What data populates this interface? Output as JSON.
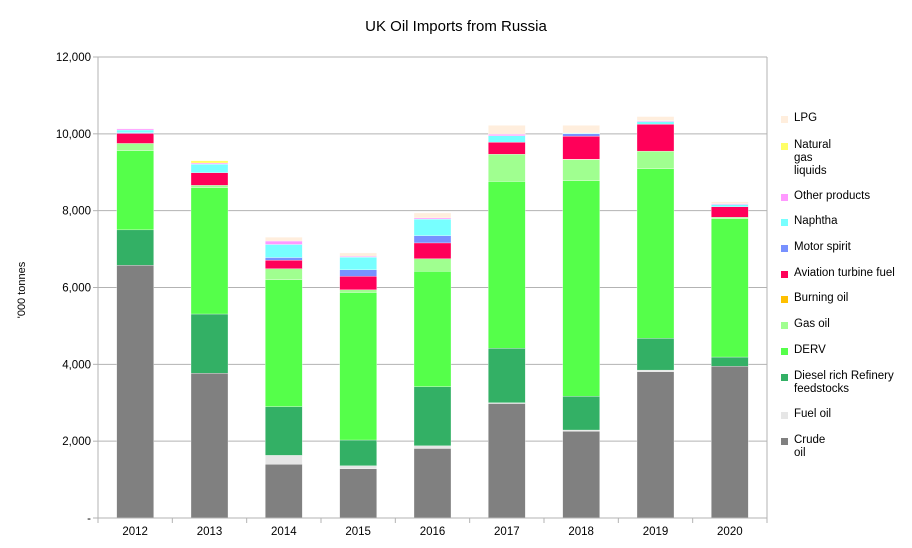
{
  "chart_data": {
    "type": "bar",
    "stacked": true,
    "title": "UK Oil Imports from Russia",
    "xlabel": "",
    "ylabel": "'000 tonnes",
    "ylim": [
      0,
      12000
    ],
    "yticks": [
      0,
      2000,
      4000,
      6000,
      8000,
      10000,
      12000
    ],
    "ytick_labels": [
      "-",
      "2,000",
      "4,000",
      "6,000",
      "8,000",
      "10,000",
      "12,000"
    ],
    "grid": true,
    "legend_position": "right",
    "categories": [
      "2012",
      "2013",
      "2014",
      "2015",
      "2016",
      "2017",
      "2018",
      "2019",
      "2020"
    ],
    "series": [
      {
        "name": "Crude oil",
        "color": "#808080",
        "values": [
          6580,
          3770,
          1400,
          1280,
          1810,
          2980,
          2260,
          3810,
          3950
        ]
      },
      {
        "name": "Fuel oil",
        "color": "#e6e6e6",
        "values": [
          0,
          0,
          230,
          80,
          70,
          20,
          30,
          40,
          0
        ]
      },
      {
        "name": "Diesel rich Refinery feedstocks",
        "color": "#33b065",
        "values": [
          920,
          1540,
          1270,
          670,
          1540,
          1420,
          880,
          830,
          240
        ]
      },
      {
        "name": "DERV",
        "color": "#55ff4a",
        "values": [
          2060,
          3290,
          3300,
          3840,
          3000,
          4340,
          5610,
          4410,
          3600
        ]
      },
      {
        "name": "Gas oil",
        "color": "#a0ff90",
        "values": [
          190,
          60,
          290,
          70,
          330,
          710,
          550,
          460,
          40
        ]
      },
      {
        "name": "Burning oil",
        "color": "#ffc000",
        "values": [
          0,
          0,
          0,
          0,
          0,
          0,
          10,
          0,
          0
        ]
      },
      {
        "name": "Aviation turbine fuel",
        "color": "#ff0059",
        "values": [
          260,
          330,
          220,
          350,
          410,
          310,
          600,
          700,
          270
        ]
      },
      {
        "name": "Motor spirit",
        "color": "#7891ff",
        "values": [
          20,
          0,
          70,
          170,
          190,
          0,
          60,
          0,
          0
        ]
      },
      {
        "name": "Naphtha",
        "color": "#77ffff",
        "values": [
          70,
          220,
          340,
          330,
          430,
          170,
          20,
          70,
          60
        ]
      },
      {
        "name": "Other products",
        "color": "#ff99ff",
        "values": [
          30,
          30,
          90,
          20,
          30,
          40,
          0,
          20,
          20
        ]
      },
      {
        "name": "Natural gas liquids",
        "color": "#ffff66",
        "values": [
          0,
          60,
          0,
          0,
          0,
          0,
          0,
          0,
          0
        ]
      },
      {
        "name": "LPG",
        "color": "#ffeedd",
        "values": [
          0,
          0,
          100,
          90,
          130,
          230,
          200,
          110,
          50
        ]
      }
    ],
    "legend_labels": [
      "LPG",
      "Natural\ngas\nliquids",
      "Other products",
      "Naphtha",
      "Motor spirit",
      "Aviation turbine fuel",
      "Burning oil",
      "Gas oil",
      "DERV",
      "Diesel rich Refinery\nfeedstocks",
      "Fuel oil",
      "Crude\noil"
    ]
  }
}
